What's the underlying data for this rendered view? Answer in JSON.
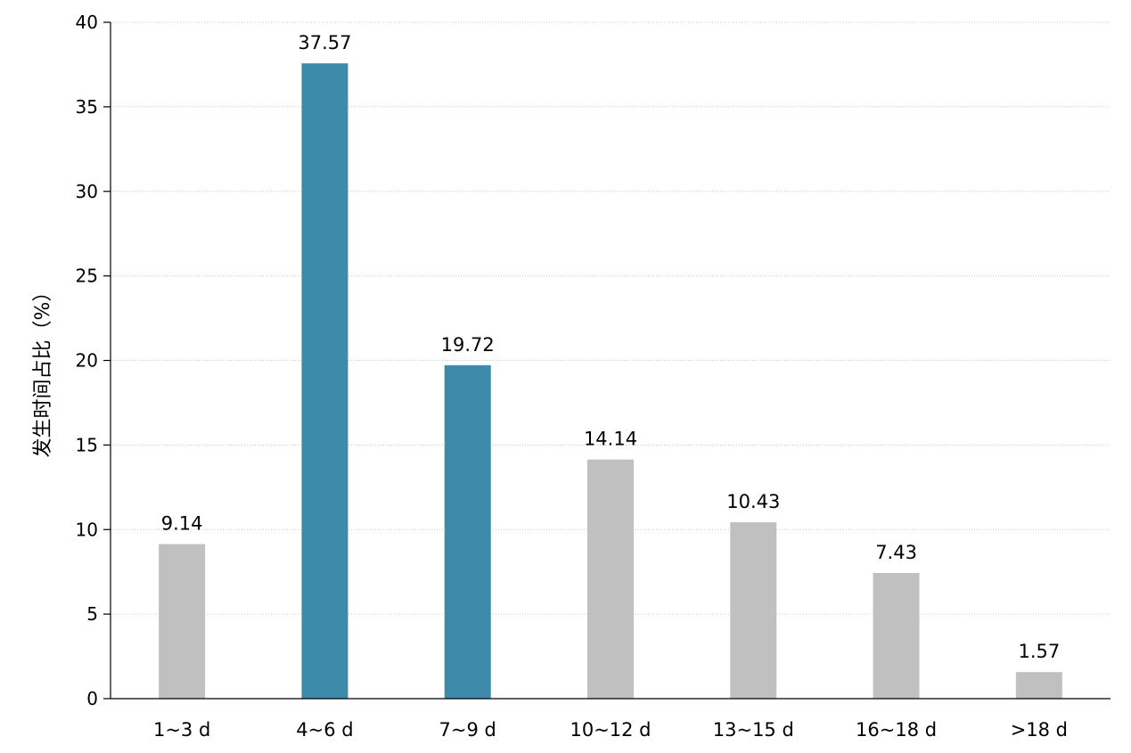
{
  "chart_data": {
    "type": "bar",
    "title": "",
    "xlabel": "",
    "ylabel": "发生时间占比（%）",
    "categories": [
      "1~3 d",
      "4~6 d",
      "7~9 d",
      "10~12 d",
      "13~15 d",
      "16~18 d",
      ">18 d"
    ],
    "values": [
      9.14,
      37.57,
      19.72,
      14.14,
      10.43,
      7.43,
      1.57
    ],
    "data_labels": [
      "9.14",
      "37.57",
      "19.72",
      "14.14",
      "10.43",
      "7.43",
      "1.57"
    ],
    "highlighted": [
      false,
      true,
      true,
      false,
      false,
      false,
      false
    ],
    "ylim": [
      0,
      40
    ],
    "yticks": [
      0,
      5,
      10,
      15,
      20,
      25,
      30,
      35,
      40
    ],
    "ytick_labels": [
      "0",
      "5",
      "10",
      "15",
      "20",
      "25",
      "30",
      "35",
      "40"
    ],
    "grid": true,
    "colors": {
      "highlight": "#3e8aab",
      "default": "#c0c0c0"
    }
  }
}
